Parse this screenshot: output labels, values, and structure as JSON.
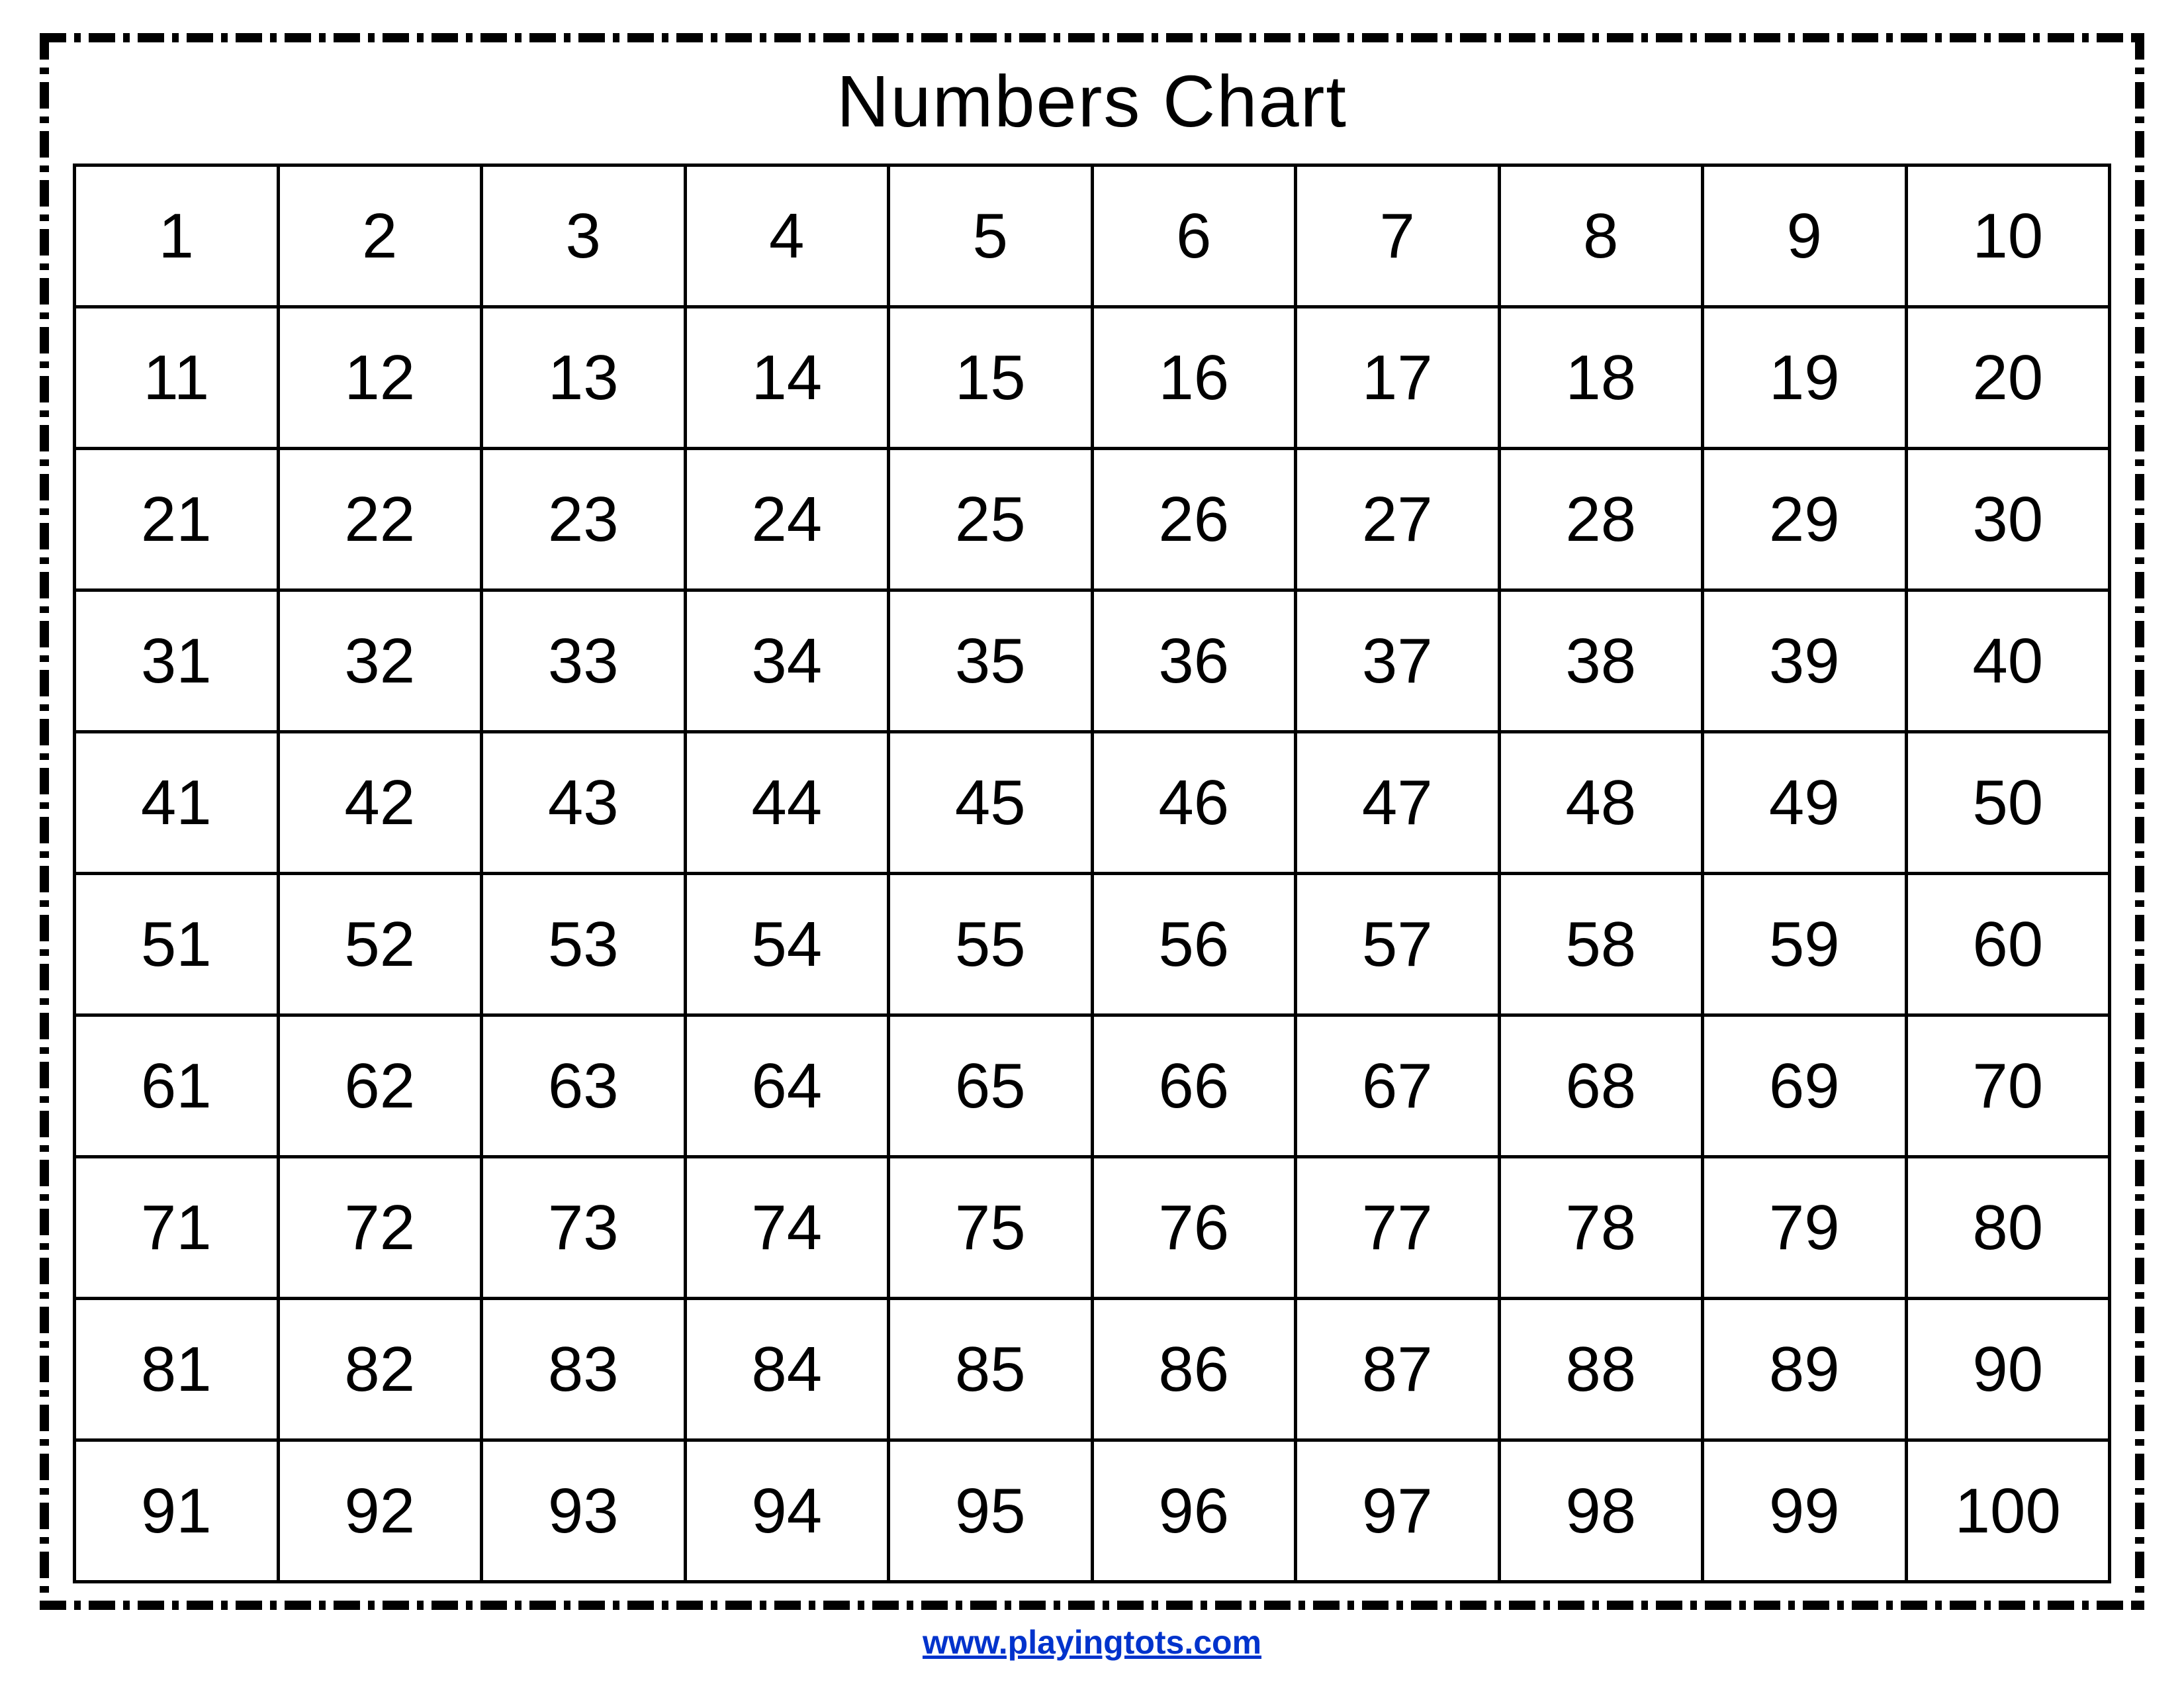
{
  "chart": {
    "type": "table",
    "title": "Numbers Chart",
    "title_fontsize": 110,
    "title_color": "#000000",
    "columns": 10,
    "rows": 10,
    "values": [
      [
        1,
        2,
        3,
        4,
        5,
        6,
        7,
        8,
        9,
        10
      ],
      [
        11,
        12,
        13,
        14,
        15,
        16,
        17,
        18,
        19,
        20
      ],
      [
        21,
        22,
        23,
        24,
        25,
        26,
        27,
        28,
        29,
        30
      ],
      [
        31,
        32,
        33,
        34,
        35,
        36,
        37,
        38,
        39,
        40
      ],
      [
        41,
        42,
        43,
        44,
        45,
        46,
        47,
        48,
        49,
        50
      ],
      [
        51,
        52,
        53,
        54,
        55,
        56,
        57,
        58,
        59,
        60
      ],
      [
        61,
        62,
        63,
        64,
        65,
        66,
        67,
        68,
        69,
        70
      ],
      [
        71,
        72,
        73,
        74,
        75,
        76,
        77,
        78,
        79,
        80
      ],
      [
        81,
        82,
        83,
        84,
        85,
        86,
        87,
        88,
        89,
        90
      ],
      [
        91,
        92,
        93,
        94,
        95,
        96,
        97,
        98,
        99,
        100
      ]
    ],
    "cell_fontsize": 96,
    "cell_font_family": "Comic Sans MS",
    "cell_text_color": "#000000",
    "cell_border_color": "#000000",
    "cell_border_width": 5,
    "background_color": "#ffffff",
    "outer_border_style": "dash-dot",
    "outer_border_color": "#000000",
    "outer_border_width": 14
  },
  "footer": {
    "text": "www.playingtots.com",
    "color": "#0033cc",
    "fontsize": 50,
    "underline": true,
    "font_family": "Arial"
  }
}
